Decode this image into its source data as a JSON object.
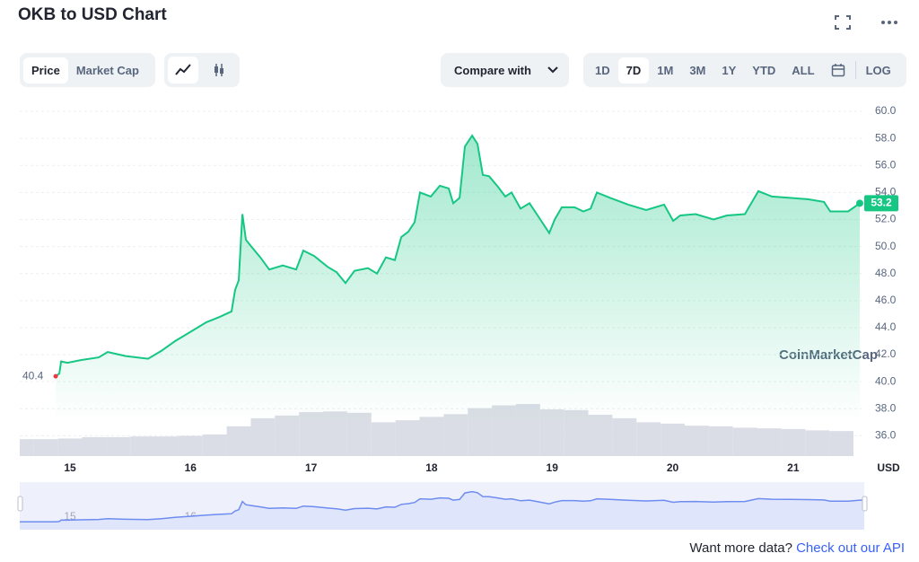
{
  "chart_data": {
    "type": "line",
    "title": "OKB to USD Chart",
    "x": [
      14.881,
      14.911,
      14.926,
      14.978,
      15.089,
      15.238,
      15.313,
      15.462,
      15.648,
      15.76,
      15.871,
      15.983,
      16.132,
      16.243,
      16.34,
      16.37,
      16.4,
      16.43,
      16.459,
      16.504,
      16.579,
      16.653,
      16.765,
      16.876,
      16.936,
      17.025,
      17.137,
      17.211,
      17.286,
      17.36,
      17.472,
      17.547,
      17.621,
      17.695,
      17.748,
      17.807,
      17.859,
      17.904,
      17.993,
      18.068,
      18.142,
      18.179,
      18.232,
      18.276,
      18.336,
      18.38,
      18.425,
      18.477,
      18.552,
      18.611,
      18.663,
      18.738,
      18.812,
      18.887,
      18.976,
      19.021,
      19.08,
      19.185,
      19.259,
      19.319,
      19.371,
      19.482,
      19.631,
      19.78,
      19.929,
      20.004,
      20.063,
      20.19,
      20.339,
      20.45,
      20.599,
      20.711,
      20.823,
      20.972,
      21.121,
      21.255,
      21.307,
      21.456,
      21.552
    ],
    "values": [
      40.4,
      40.6,
      41.5,
      41.4,
      41.6,
      41.8,
      42.2,
      41.9,
      41.7,
      42.3,
      43.0,
      43.6,
      44.4,
      44.8,
      45.2,
      46.8,
      47.5,
      52.4,
      50.5,
      50.0,
      49.2,
      48.3,
      48.6,
      48.3,
      49.7,
      49.3,
      48.5,
      48.1,
      47.3,
      48.2,
      48.4,
      48.0,
      49.2,
      49.0,
      50.7,
      51.1,
      51.8,
      54.0,
      53.7,
      54.5,
      54.3,
      53.2,
      53.6,
      57.4,
      58.2,
      57.6,
      55.3,
      55.2,
      54.4,
      53.7,
      54.0,
      52.8,
      53.2,
      52.2,
      51.0,
      52.0,
      52.9,
      52.9,
      52.6,
      52.8,
      54.0,
      53.6,
      53.1,
      52.7,
      53.1,
      51.9,
      52.3,
      52.4,
      52.0,
      52.3,
      52.4,
      54.1,
      53.7,
      53.6,
      53.5,
      53.3,
      52.6,
      52.6,
      53.2
    ],
    "color": "#16c784",
    "volume": {
      "x": [
        14.6,
        14.8,
        15.0,
        15.2,
        15.4,
        15.6,
        15.8,
        16.0,
        16.2,
        16.4,
        16.6,
        16.8,
        17.0,
        17.2,
        17.4,
        17.6,
        17.8,
        18.0,
        18.2,
        18.4,
        18.6,
        18.8,
        19.0,
        19.2,
        19.4,
        19.6,
        19.8,
        20.0,
        20.2,
        20.4,
        20.6,
        20.8,
        21.0,
        21.2,
        21.4
      ],
      "values": [
        35.75,
        35.75,
        35.8,
        35.9,
        35.9,
        35.95,
        35.95,
        36.0,
        36.1,
        36.7,
        37.3,
        37.5,
        37.75,
        37.8,
        37.7,
        37.0,
        37.15,
        37.4,
        37.6,
        38.05,
        38.25,
        38.35,
        37.95,
        37.9,
        37.55,
        37.3,
        37.0,
        36.9,
        36.75,
        36.7,
        36.6,
        36.55,
        36.5,
        36.4,
        36.35
      ],
      "color": "#dadde5"
    },
    "xlim": [
      14.583,
      21.567
    ],
    "xticks": [
      15,
      16,
      17,
      18,
      19,
      20,
      21
    ],
    "ylim": [
      34.5,
      60.6
    ],
    "yticks": [
      {
        "value": 36,
        "label": "36.0"
      },
      {
        "value": 38,
        "label": "38.0"
      },
      {
        "value": 40,
        "label": "40.0"
      },
      {
        "value": 42,
        "label": "42.0"
      },
      {
        "value": 44,
        "label": "44.0"
      },
      {
        "value": 46,
        "label": "46.0"
      },
      {
        "value": 48,
        "label": "48.0"
      },
      {
        "value": 50,
        "label": "50.0"
      },
      {
        "value": 52,
        "label": "52.0"
      },
      {
        "value": 54,
        "label": "54.0"
      },
      {
        "value": 56,
        "label": "56.0"
      },
      {
        "value": 58,
        "label": "58.0"
      },
      {
        "value": 60,
        "label": "60.0"
      }
    ],
    "grid": true,
    "unit_label": "USD",
    "watermark": "CoinMarketCap",
    "navigator_color": "#6f8cf0"
  },
  "toolbar": {
    "views": [
      "Price",
      "Market Cap"
    ],
    "compare": "Compare with",
    "ranges": [
      "1D",
      "7D",
      "1M",
      "3M",
      "1Y",
      "YTD",
      "ALL"
    ],
    "selected_range": 1,
    "log": "LOG"
  },
  "footer": {
    "prompt": "Want more data?",
    "link": "Check out our API"
  }
}
